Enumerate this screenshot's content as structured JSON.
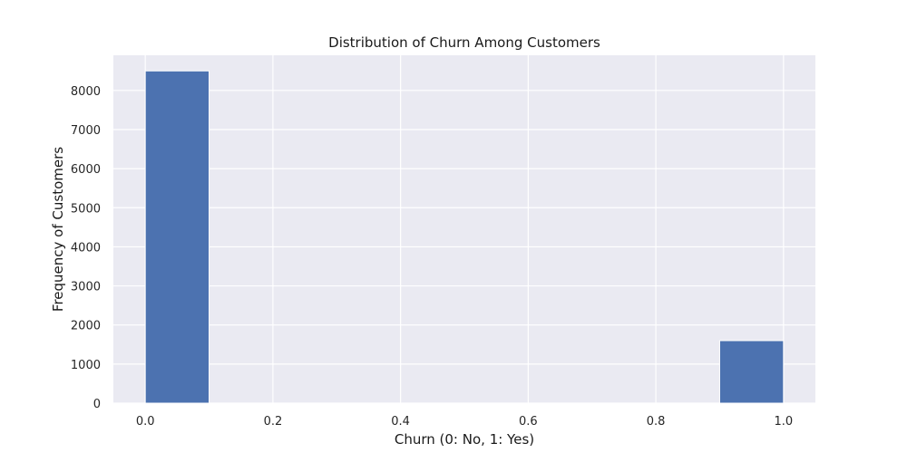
{
  "chart_data": {
    "type": "bar",
    "title": "Distribution of Churn Among Customers",
    "xlabel": "Churn (0: No, 1: Yes)",
    "ylabel": "Frequency of Customers",
    "xlim": [
      -0.05,
      1.05
    ],
    "ylim": [
      0,
      8900
    ],
    "xticks": [
      0.0,
      0.2,
      0.4,
      0.6,
      0.8,
      1.0
    ],
    "xtick_labels": [
      "0.0",
      "0.2",
      "0.4",
      "0.6",
      "0.8",
      "1.0"
    ],
    "yticks": [
      0,
      1000,
      2000,
      3000,
      4000,
      5000,
      6000,
      7000,
      8000
    ],
    "ytick_labels": [
      "0",
      "1000",
      "2000",
      "3000",
      "4000",
      "5000",
      "6000",
      "7000",
      "8000"
    ],
    "bins": [
      {
        "x0": 0.0,
        "x1": 0.1,
        "value": 8500
      },
      {
        "x0": 0.1,
        "x1": 0.2,
        "value": 0
      },
      {
        "x0": 0.2,
        "x1": 0.3,
        "value": 0
      },
      {
        "x0": 0.3,
        "x1": 0.4,
        "value": 0
      },
      {
        "x0": 0.4,
        "x1": 0.5,
        "value": 0
      },
      {
        "x0": 0.5,
        "x1": 0.6,
        "value": 0
      },
      {
        "x0": 0.6,
        "x1": 0.7,
        "value": 0
      },
      {
        "x0": 0.7,
        "x1": 0.8,
        "value": 0
      },
      {
        "x0": 0.8,
        "x1": 0.9,
        "value": 0
      },
      {
        "x0": 0.9,
        "x1": 1.0,
        "value": 1600
      }
    ],
    "grid": true,
    "colors": {
      "bar": "#4c72b0",
      "plot_background": "#eaeaf2",
      "grid": "#ffffff"
    }
  }
}
